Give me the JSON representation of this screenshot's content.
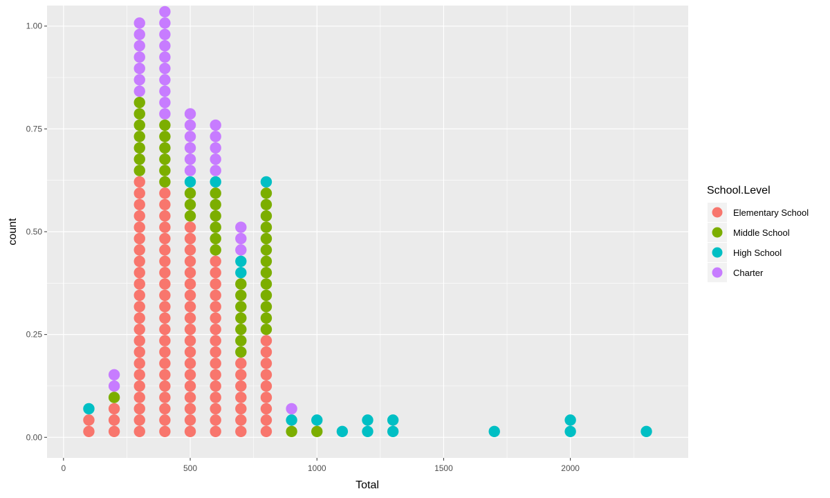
{
  "chart_data": {
    "type": "dotplot",
    "xlabel": "Total",
    "ylabel": "count",
    "xlim": [
      -65,
      2465
    ],
    "ylim": [
      -0.05,
      1.05
    ],
    "x_ticks": [
      0,
      500,
      1000,
      1500,
      2000
    ],
    "x_tick_labels": [
      "0",
      "500",
      "1000",
      "1500",
      "2000"
    ],
    "y_ticks": [
      0,
      0.25,
      0.5,
      0.75,
      1.0
    ],
    "y_tick_labels": [
      "0.00",
      "0.25",
      "0.50",
      "0.75",
      "1.00"
    ],
    "grid": true,
    "legend_position": "right",
    "legend_title": "School.Level",
    "series": [
      {
        "name": "Elementary School",
        "color": "#F8766D"
      },
      {
        "name": "Middle School",
        "color": "#7CAE00"
      },
      {
        "name": "High School",
        "color": "#00BFC4"
      },
      {
        "name": "Charter",
        "color": "#C77CFF"
      }
    ],
    "stacks": [
      {
        "x": 100,
        "counts": [
          2,
          0,
          1,
          0
        ]
      },
      {
        "x": 200,
        "counts": [
          3,
          1,
          0,
          2
        ]
      },
      {
        "x": 300,
        "counts": [
          23,
          7,
          0,
          7
        ]
      },
      {
        "x": 400,
        "counts": [
          22,
          6,
          0,
          10
        ]
      },
      {
        "x": 500,
        "counts": [
          19,
          3,
          1,
          6
        ]
      },
      {
        "x": 600,
        "counts": [
          16,
          6,
          1,
          5
        ]
      },
      {
        "x": 700,
        "counts": [
          7,
          7,
          2,
          3
        ]
      },
      {
        "x": 800,
        "counts": [
          9,
          13,
          1,
          0
        ]
      },
      {
        "x": 900,
        "counts": [
          0,
          1,
          1,
          1
        ]
      },
      {
        "x": 1000,
        "counts": [
          0,
          1,
          1,
          0
        ]
      },
      {
        "x": 1100,
        "counts": [
          0,
          0,
          1,
          0
        ]
      },
      {
        "x": 1200,
        "counts": [
          0,
          0,
          2,
          0
        ]
      },
      {
        "x": 1300,
        "counts": [
          0,
          0,
          2,
          0
        ]
      },
      {
        "x": 1700,
        "counts": [
          0,
          0,
          1,
          0
        ]
      },
      {
        "x": 2000,
        "counts": [
          0,
          0,
          2,
          0
        ]
      },
      {
        "x": 2300,
        "counts": [
          0,
          0,
          1,
          0
        ]
      }
    ]
  }
}
